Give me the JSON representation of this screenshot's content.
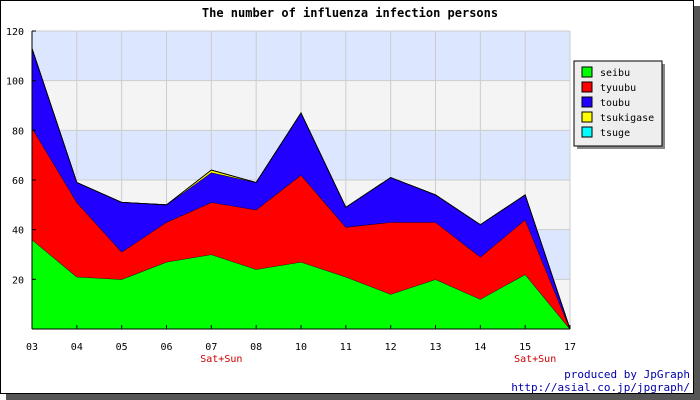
{
  "chart_data": {
    "type": "area",
    "stacked": true,
    "title": "The number of influenza infection persons",
    "categories": [
      "03",
      "04",
      "05",
      "06",
      "07",
      "08",
      "10",
      "11",
      "12",
      "13",
      "14",
      "15",
      "17"
    ],
    "category_notes": [
      {
        "category": "07",
        "text": "Sat+Sun"
      },
      {
        "category": "15",
        "text": "Sat+Sun"
      }
    ],
    "ylim": [
      0,
      120
    ],
    "yticks": [
      20,
      40,
      60,
      80,
      100,
      120
    ],
    "grid": true,
    "background_bands": [
      "#dde6ff",
      "#f4f4f4"
    ],
    "legend_position": "right",
    "series": [
      {
        "name": "seibu",
        "color": "#00ff00",
        "values": [
          36,
          21,
          20,
          27,
          30,
          24,
          27,
          21,
          14,
          20,
          12,
          22,
          0
        ]
      },
      {
        "name": "tyuubu",
        "color": "#ff0000",
        "values": [
          45,
          30,
          11,
          16,
          21,
          24,
          35,
          20,
          29,
          23,
          17,
          22,
          0
        ]
      },
      {
        "name": "toubu",
        "color": "#2200ff",
        "values": [
          32,
          8,
          20,
          7,
          12,
          11,
          25,
          8,
          18,
          11,
          13,
          10,
          0
        ]
      },
      {
        "name": "tsukigase",
        "color": "#ffff00",
        "values": [
          0,
          0,
          0,
          0,
          1,
          0,
          0,
          0,
          0,
          0,
          0,
          0,
          0
        ]
      },
      {
        "name": "tsuge",
        "color": "#00ffff",
        "values": [
          0,
          0,
          0,
          0,
          0,
          0,
          0,
          0,
          0,
          0,
          0,
          0,
          0
        ]
      }
    ]
  },
  "credits": {
    "line1": "produced by JpGraph",
    "line2": "http://asial.co.jp/jpgraph/"
  }
}
